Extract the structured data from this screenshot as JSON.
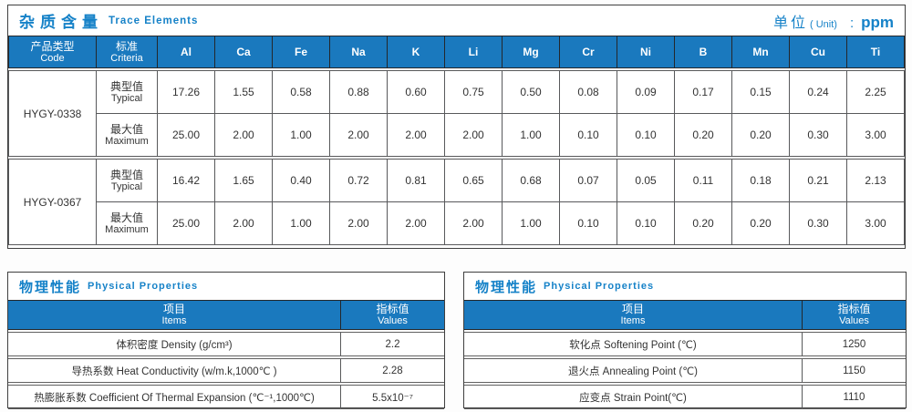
{
  "colors": {
    "accent": "#1682c8",
    "header_bg": "#1a79be",
    "border_dark": "#3f3f3f"
  },
  "trace": {
    "title_zh": "杂质含量",
    "title_en": "Trace Elements",
    "unit_zh": "单位",
    "unit_en": "( Unit)",
    "unit_colon": ":",
    "unit_value": "ppm",
    "col_product_zh": "产品类型",
    "col_product_en": "Code",
    "col_criteria_zh": "标准",
    "col_criteria_en": "Criteria",
    "elements": [
      "Al",
      "Ca",
      "Fe",
      "Na",
      "K",
      "Li",
      "Mg",
      "Cr",
      "Ni",
      "B",
      "Mn",
      "Cu",
      "Ti"
    ],
    "row_labels": {
      "typical_zh": "典型值",
      "typical_en": "Typical",
      "maximum_zh": "最大值",
      "maximum_en": "Maximum"
    },
    "groups": [
      {
        "code": "HYGY-0338",
        "rows": [
          {
            "label_zh": "典型值",
            "label_en": "Typical",
            "values": [
              "17.26",
              "1.55",
              "0.58",
              "0.88",
              "0.60",
              "0.75",
              "0.50",
              "0.08",
              "0.09",
              "0.17",
              "0.15",
              "0.24",
              "2.25"
            ]
          },
          {
            "label_zh": "最大值",
            "label_en": "Maximum",
            "values": [
              "25.00",
              "2.00",
              "1.00",
              "2.00",
              "2.00",
              "2.00",
              "1.00",
              "0.10",
              "0.10",
              "0.20",
              "0.20",
              "0.30",
              "3.00"
            ]
          }
        ]
      },
      {
        "code": "HYGY-0367",
        "rows": [
          {
            "label_zh": "典型值",
            "label_en": "Typical",
            "values": [
              "16.42",
              "1.65",
              "0.40",
              "0.72",
              "0.81",
              "0.65",
              "0.68",
              "0.07",
              "0.05",
              "0.11",
              "0.18",
              "0.21",
              "2.13"
            ]
          },
          {
            "label_zh": "最大值",
            "label_en": "Maximum",
            "values": [
              "25.00",
              "2.00",
              "1.00",
              "2.00",
              "2.00",
              "2.00",
              "1.00",
              "0.10",
              "0.10",
              "0.20",
              "0.20",
              "0.30",
              "3.00"
            ]
          }
        ]
      }
    ]
  },
  "physical_left": {
    "title_zh": "物理性能",
    "title_en": "Physical Properties",
    "col_items_zh": "项目",
    "col_items_en": "Items",
    "col_values_zh": "指标值",
    "col_values_en": "Values",
    "rows": [
      {
        "item": "体积密度 Density (g/cm³)",
        "value": "2.2"
      },
      {
        "item": "导热系数 Heat Conductivity (w/m.k,1000℃ )",
        "value": "2.28"
      },
      {
        "item": "热膨胀系数 Coefficient Of Thermal Expansion (℃⁻¹,1000℃)",
        "value": "5.5x10⁻⁷"
      }
    ]
  },
  "physical_right": {
    "title_zh": "物理性能",
    "title_en": "Physical Properties",
    "col_items_zh": "项目",
    "col_items_en": "Items",
    "col_values_zh": "指标值",
    "col_values_en": "Values",
    "rows": [
      {
        "item": "软化点 Softening Point (℃)",
        "value": "1250"
      },
      {
        "item": "退火点 Annealing Point (℃)",
        "value": "1150"
      },
      {
        "item": "应变点 Strain Point(℃)",
        "value": "1110"
      }
    ]
  }
}
